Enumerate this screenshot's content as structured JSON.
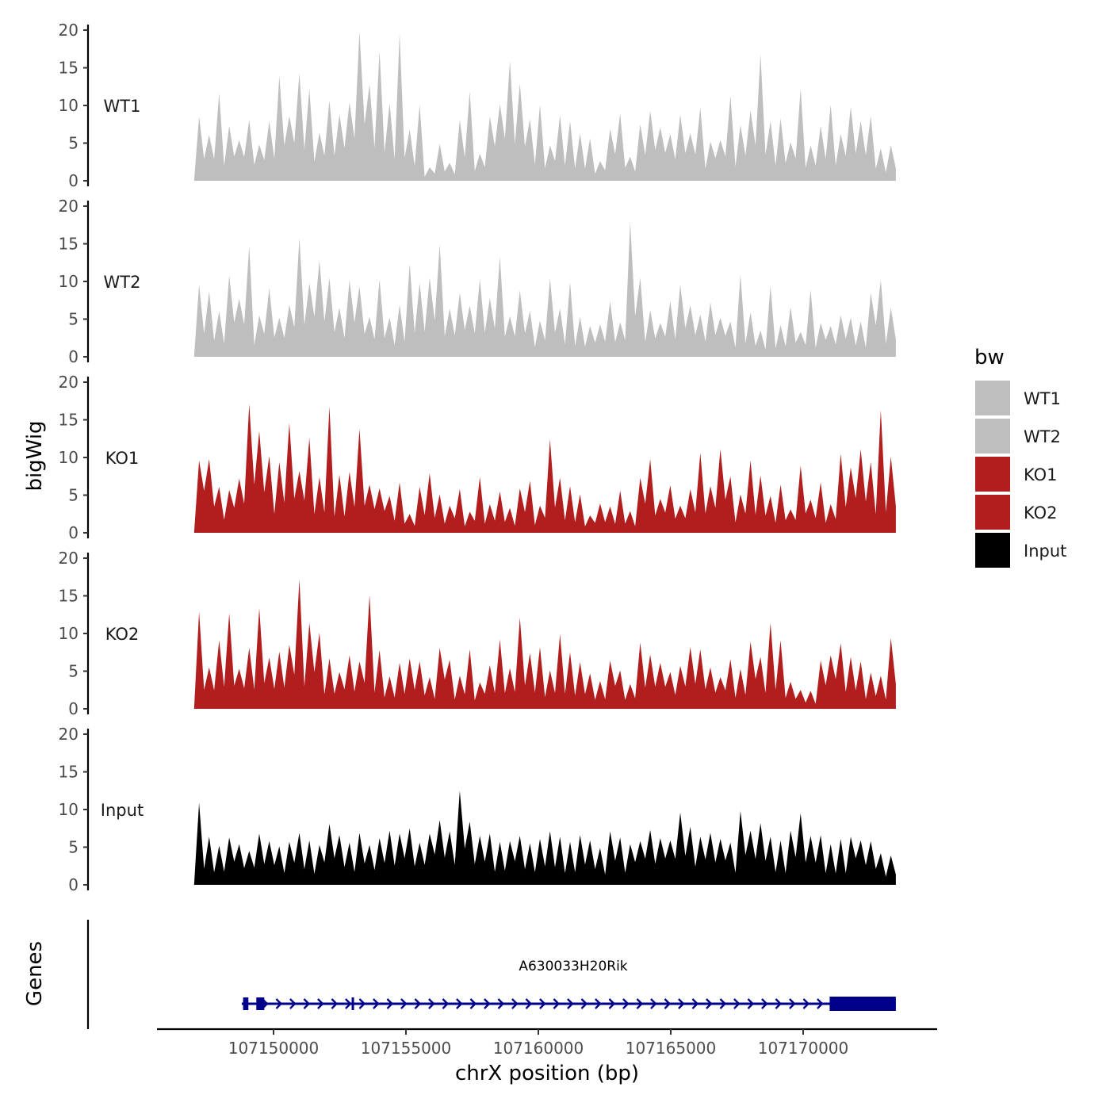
{
  "chart_data": {
    "type": "area",
    "title": "",
    "ylabel": "bigWig",
    "xlabel": "chrX position (bp)",
    "gene_track_label": "Genes",
    "xlim": [
      107143000,
      107174500
    ],
    "data_xrange": [
      107147000,
      107173500
    ],
    "ylim": [
      0,
      20
    ],
    "yticks": [
      0,
      5,
      10,
      15,
      20
    ],
    "xticks": [
      107150000,
      107155000,
      107160000,
      107165000,
      107170000
    ],
    "xtick_labels": [
      "107150000",
      "107155000",
      "107160000",
      "107165000",
      "107170000"
    ],
    "legend": {
      "title": "bw",
      "position": "right",
      "entries": [
        {
          "label": "WT1",
          "color": "#bebebe"
        },
        {
          "label": "WT2",
          "color": "#bebebe"
        },
        {
          "label": "KO1",
          "color": "#b21e1e"
        },
        {
          "label": "KO2",
          "color": "#b21e1e"
        },
        {
          "label": "Input",
          "color": "#000000"
        }
      ]
    },
    "series": [
      {
        "name": "WT1",
        "color": "#bebebe",
        "peaks": [
          8.5,
          6.1,
          11.6,
          7.3,
          5.4,
          8.1,
          4.8,
          7.9,
          13.9,
          8.6,
          14.3,
          12.2,
          6.4,
          10.7,
          8.8,
          10.4,
          19.8,
          12.8,
          17.2,
          10.3,
          19.5,
          6.8,
          10.1,
          1.8,
          4.9,
          2.4,
          8.1,
          11.9,
          3.6,
          8.5,
          10.2,
          15.9,
          12.9,
          8.2,
          10.1,
          4.7,
          8.7,
          7.9,
          6.3,
          5.6,
          2.6,
          6.9,
          8.9,
          3.2,
          7.5,
          9.3,
          7.1,
          6.2,
          8.8,
          6.3,
          9.7,
          5.2,
          5.4,
          11.3,
          7.4,
          9.3,
          16.8,
          7.9,
          8.3,
          5.1,
          12.2,
          4.7,
          7.3,
          10.1,
          6.2,
          9.8,
          7.9,
          8.6,
          4.3,
          4.7
        ]
      },
      {
        "name": "WT2",
        "color": "#bebebe",
        "peaks": [
          9.6,
          8.7,
          6.1,
          10.8,
          7.7,
          14.7,
          5.5,
          9.1,
          5.2,
          6.9,
          15.8,
          9.8,
          12.8,
          10.5,
          6.5,
          10.2,
          9.4,
          5.3,
          10.3,
          5.2,
          6.9,
          12.3,
          9.8,
          10.5,
          14.9,
          6.4,
          8.5,
          6.8,
          10.3,
          7.8,
          13.3,
          5.4,
          8.8,
          6.1,
          4.8,
          10.4,
          6.4,
          9.9,
          5.3,
          4.1,
          4.3,
          7.4,
          4.6,
          17.9,
          10.5,
          6.2,
          4.5,
          7.4,
          9.6,
          6.8,
          5.6,
          7.2,
          5.2,
          4.7,
          10.9,
          5.9,
          3.5,
          9.4,
          4.2,
          6.6,
          3.3,
          8.9,
          4.5,
          4.1,
          5.5,
          5.2,
          4.7,
          8.5,
          10.2,
          6.5
        ]
      },
      {
        "name": "KO1",
        "color": "#b21e1e",
        "peaks": [
          9.6,
          9.8,
          6.1,
          5.7,
          7.2,
          17.1,
          13.5,
          10.2,
          9.4,
          14.6,
          8.2,
          12.6,
          7.4,
          16.8,
          7.7,
          8.1,
          13.8,
          6.4,
          5.9,
          4.9,
          6.7,
          2.5,
          6.1,
          7.9,
          5.1,
          3.6,
          5.8,
          2.8,
          7.4,
          3.8,
          5.5,
          3.3,
          5.9,
          6.9,
          3.6,
          12.4,
          7.3,
          6.2,
          5.1,
          2.3,
          3.9,
          3.5,
          5.6,
          2.9,
          7.3,
          9.8,
          4.5,
          6.3,
          3.6,
          5.8,
          10.6,
          6.2,
          11.1,
          7.5,
          5.1,
          9.6,
          7.6,
          4.9,
          6.4,
          3.1,
          8.9,
          4.4,
          6.7,
          3.8,
          10.5,
          8.7,
          11.1,
          9.4,
          16.3,
          10.1
        ]
      },
      {
        "name": "KO2",
        "color": "#b21e1e",
        "peaks": [
          12.9,
          5.5,
          9.1,
          12.7,
          5.3,
          8.1,
          13.4,
          6.8,
          7.6,
          8.5,
          17.2,
          11.4,
          10.1,
          6.7,
          4.9,
          7.1,
          6.3,
          15.1,
          7.8,
          4.3,
          6.1,
          6.7,
          6.3,
          4.2,
          8.1,
          6.5,
          4.4,
          7.9,
          3.5,
          5.8,
          9.2,
          5.4,
          12.1,
          7.4,
          8.2,
          5.1,
          9.9,
          7.5,
          6.2,
          4.7,
          3.7,
          6.4,
          5.1,
          3.3,
          8.8,
          7.2,
          6.1,
          4.9,
          5.7,
          8.2,
          7.9,
          5.5,
          4.2,
          6.6,
          5.3,
          8.9,
          6.9,
          11.4,
          9.1,
          3.6,
          2.5,
          2.4,
          6.4,
          7.1,
          8.7,
          6.9,
          6.3,
          4.8,
          4.4,
          9.4
        ]
      },
      {
        "name": "Input",
        "color": "#000000",
        "peaks": [
          10.9,
          6.4,
          5.2,
          6.3,
          5.4,
          4.5,
          6.8,
          5.8,
          5.1,
          5.7,
          6.9,
          5.9,
          5.3,
          8.1,
          6.6,
          5.6,
          6.9,
          5.3,
          6.2,
          7.2,
          6.8,
          7.5,
          5.6,
          6.8,
          8.6,
          7.1,
          12.5,
          8.4,
          6.5,
          6.8,
          5.7,
          5.8,
          6.5,
          5.5,
          6.1,
          7.1,
          6.4,
          5.7,
          6.6,
          5.9,
          4.9,
          7.1,
          6.3,
          5.4,
          5.8,
          7.3,
          6.2,
          5.9,
          9.6,
          7.7,
          6.4,
          6.9,
          6.1,
          5.6,
          9.8,
          7.2,
          8.2,
          6.4,
          5.9,
          7.2,
          9.5,
          6.5,
          6.6,
          5.4,
          6.1,
          6.4,
          5.9,
          5.8,
          4.2,
          3.9
        ]
      }
    ],
    "gene": {
      "name": "A630033H20Rik",
      "color": "#00008b",
      "strand": "+",
      "start": 107148800,
      "end": 107173500,
      "exons": [
        {
          "start": 107148850,
          "end": 107149050,
          "height": "thin"
        },
        {
          "start": 107149350,
          "end": 107149650,
          "height": "thin"
        },
        {
          "start": 107152950,
          "end": 107153000,
          "height": "thin"
        },
        {
          "start": 107171000,
          "end": 107173500,
          "height": "thick"
        }
      ]
    }
  }
}
